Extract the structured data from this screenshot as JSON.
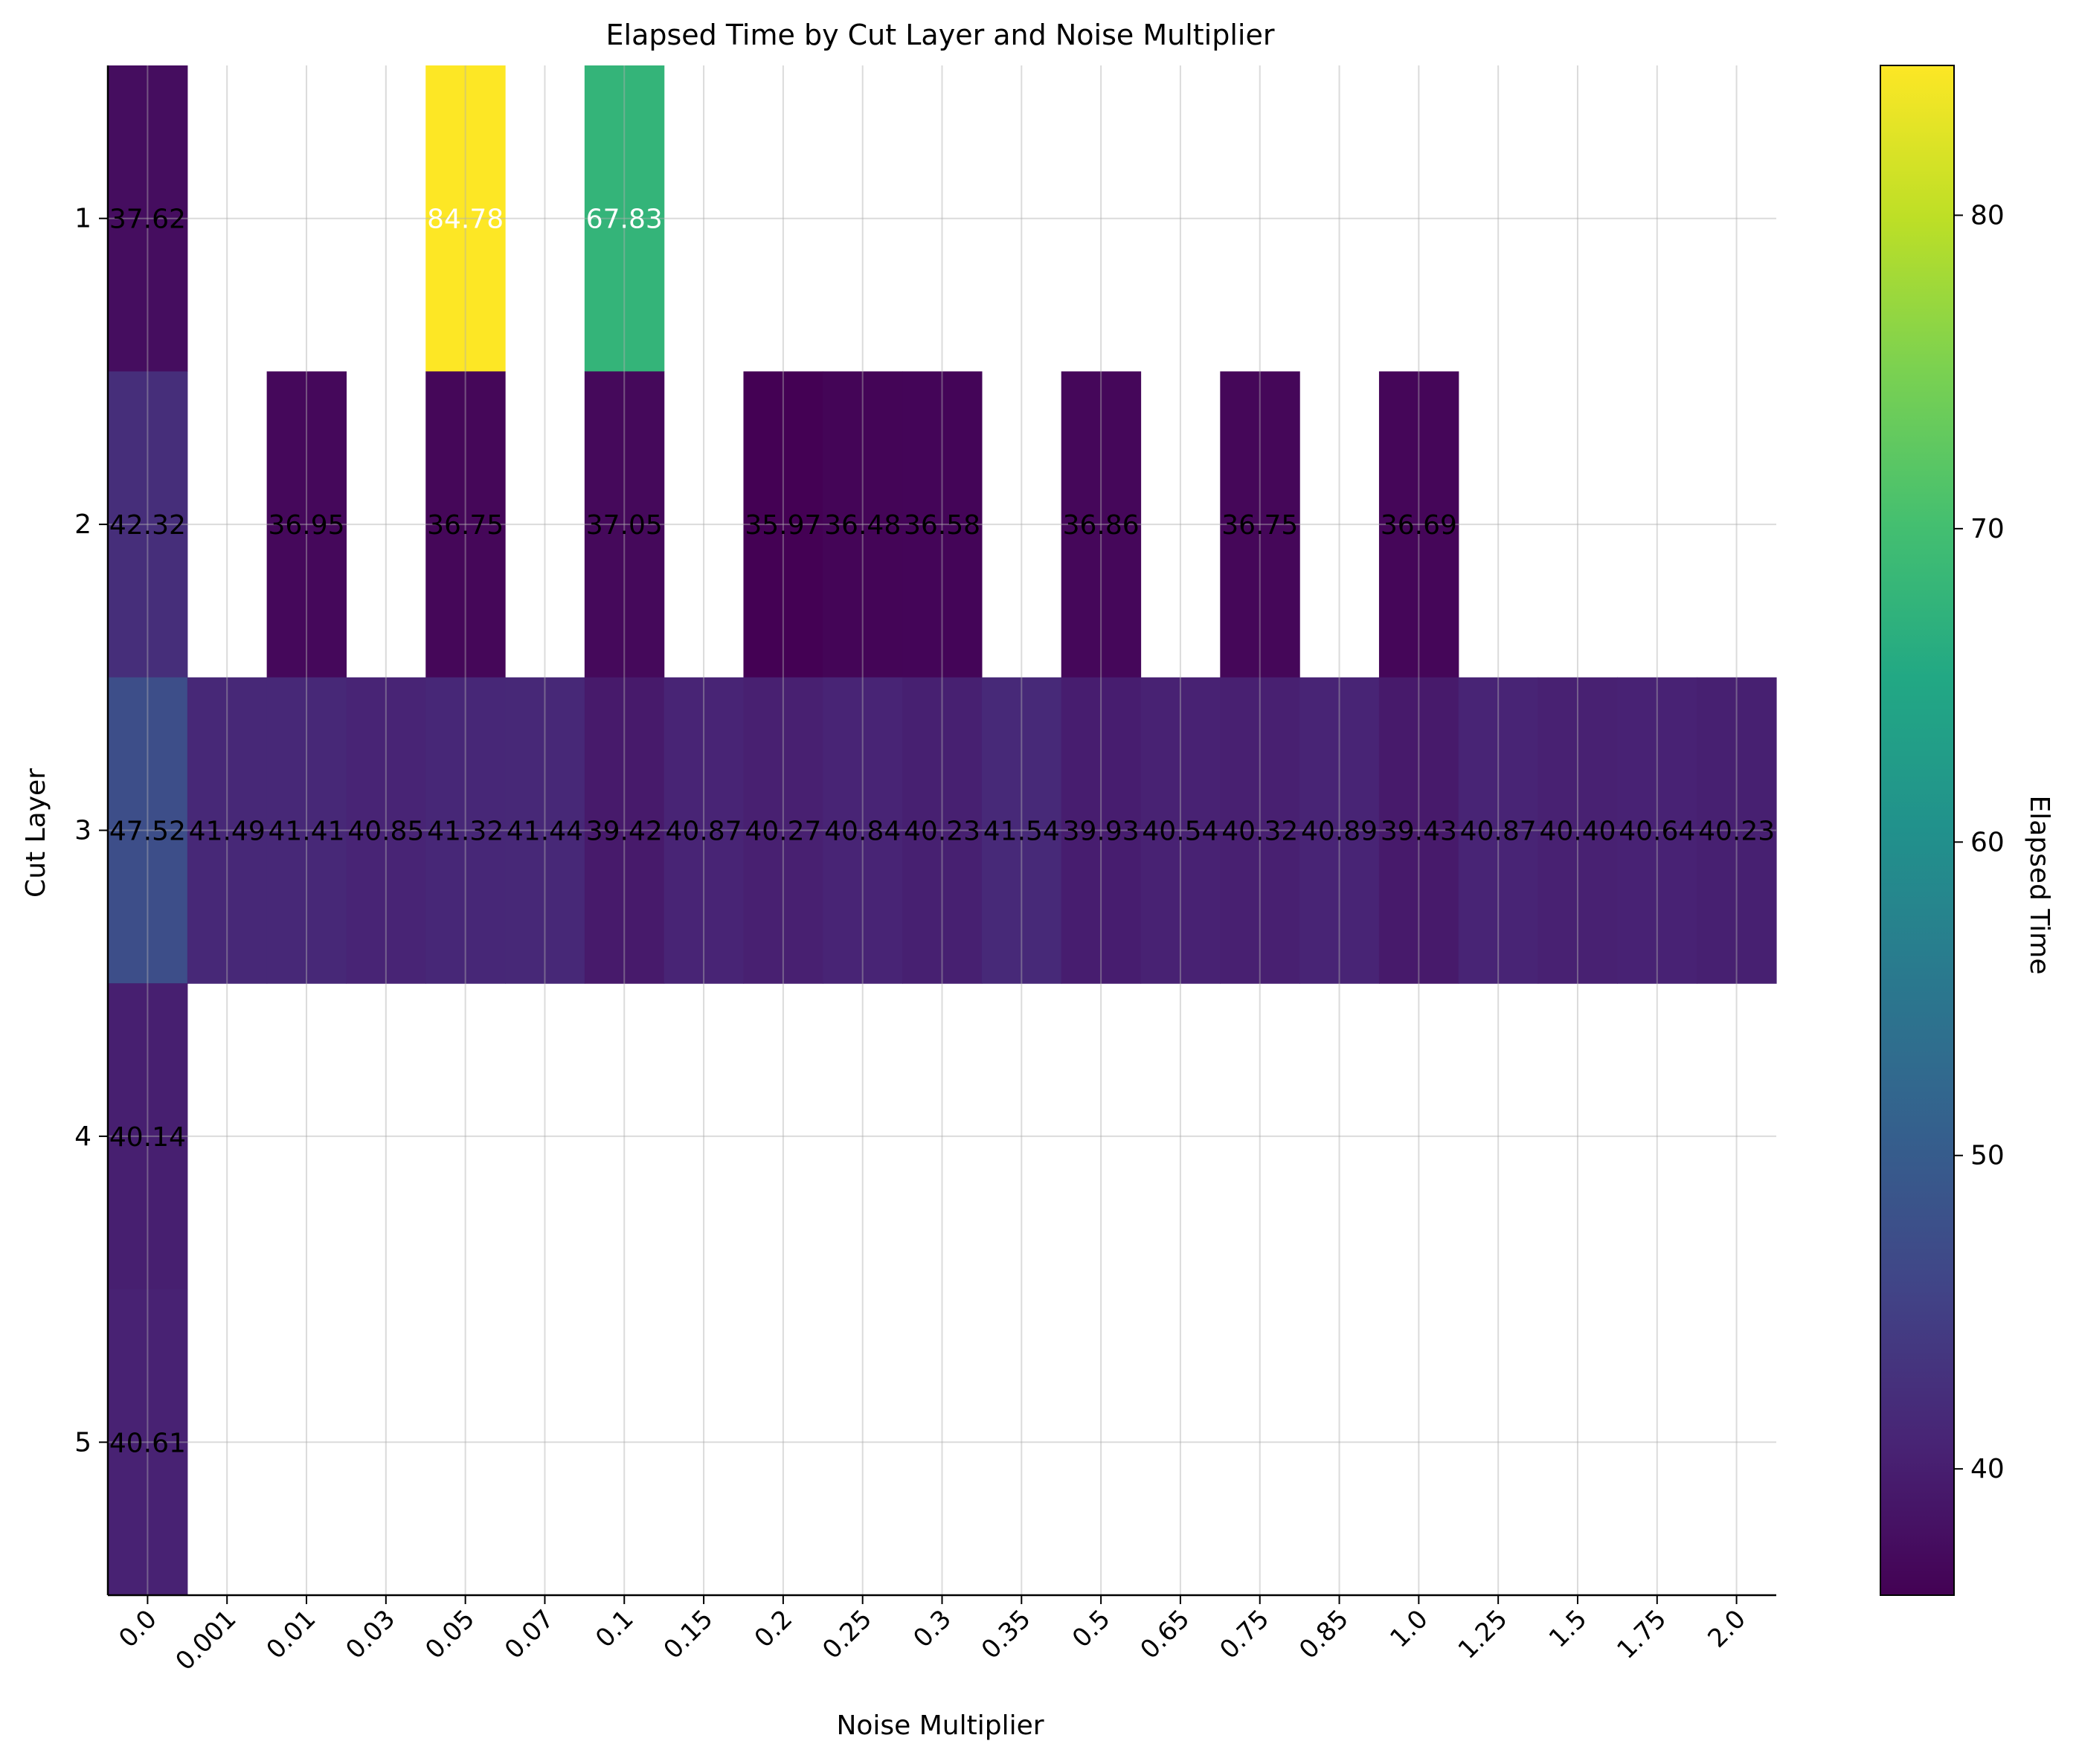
{
  "chart_data": {
    "type": "heatmap",
    "title": "Elapsed Time by Cut Layer and Noise Multiplier",
    "xlabel": "Noise Multiplier",
    "ylabel": "Cut Layer",
    "x_categories": [
      "0.0",
      "0.001",
      "0.01",
      "0.03",
      "0.05",
      "0.07",
      "0.1",
      "0.15",
      "0.2",
      "0.25",
      "0.3",
      "0.35",
      "0.5",
      "0.65",
      "0.75",
      "0.85",
      "1.0",
      "1.25",
      "1.5",
      "1.75",
      "2.0"
    ],
    "y_categories": [
      "1",
      "2",
      "3",
      "4",
      "5"
    ],
    "values": [
      [
        37.62,
        null,
        null,
        null,
        84.78,
        null,
        67.83,
        null,
        null,
        null,
        null,
        null,
        null,
        null,
        null,
        null,
        null,
        null,
        null,
        null,
        null
      ],
      [
        42.32,
        null,
        36.95,
        null,
        36.75,
        null,
        37.05,
        null,
        35.97,
        36.48,
        36.58,
        null,
        36.86,
        null,
        36.75,
        null,
        36.69,
        null,
        null,
        null,
        null
      ],
      [
        47.52,
        41.49,
        41.41,
        40.85,
        41.32,
        41.44,
        39.42,
        40.87,
        40.27,
        40.84,
        40.23,
        41.54,
        39.93,
        40.54,
        40.32,
        40.89,
        39.43,
        40.87,
        40.4,
        40.64,
        40.23
      ],
      [
        40.14,
        null,
        null,
        null,
        null,
        null,
        null,
        null,
        null,
        null,
        null,
        null,
        null,
        null,
        null,
        null,
        null,
        null,
        null,
        null,
        null
      ],
      [
        40.61,
        null,
        null,
        null,
        null,
        null,
        null,
        null,
        null,
        null,
        null,
        null,
        null,
        null,
        null,
        null,
        null,
        null,
        null,
        null,
        null
      ]
    ],
    "colorbar": {
      "label": "Elapsed Time",
      "colormap": "viridis",
      "range": [
        35.97,
        84.78
      ],
      "ticks": [
        40,
        50,
        60,
        70,
        80
      ]
    },
    "grid": true
  }
}
